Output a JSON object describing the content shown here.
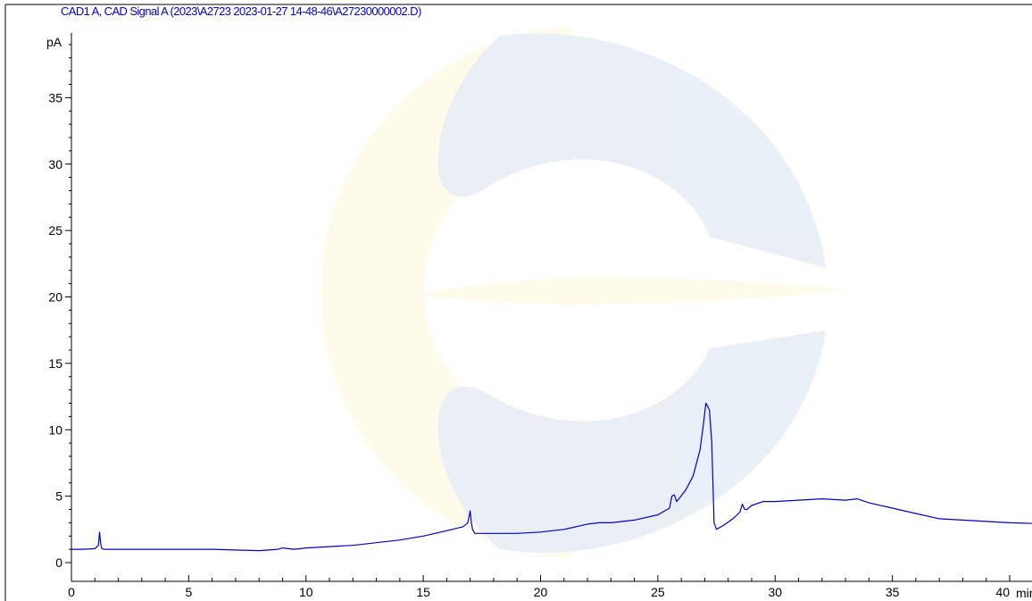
{
  "colors": {
    "trace": "#0000cc",
    "title": "#0000cc",
    "axis": "#000000",
    "watermark_blue": "#e8eef6",
    "watermark_yellow": "#fffbe8"
  },
  "chart_data": {
    "type": "line",
    "title": "CAD1 A, CAD Signal A (2023\\A2723 2023-01-27 14-48-46\\A27230000002.D)",
    "ylabel": "pA",
    "xlabel": "min",
    "xlim": [
      0,
      41
    ],
    "ylim": [
      -1,
      40
    ],
    "xticks": [
      "0",
      "5",
      "10",
      "15",
      "20",
      "25",
      "30",
      "35",
      "40"
    ],
    "xtick_values": [
      0,
      5,
      10,
      15,
      20,
      25,
      30,
      35,
      40
    ],
    "yticks": [
      "0",
      "5",
      "10",
      "15",
      "20",
      "25",
      "30",
      "35"
    ],
    "ytick_values": [
      0,
      5,
      10,
      15,
      20,
      25,
      30,
      35
    ],
    "grid": false,
    "watermark": "company-logo",
    "series": [
      {
        "x": [
          0,
          0.5,
          1.0,
          1.15,
          1.2,
          1.25,
          1.3,
          1.4,
          2,
          3,
          4,
          5,
          6,
          7,
          8,
          8.8,
          9.0,
          9.5,
          10,
          11,
          12,
          13,
          14,
          15,
          16,
          16.7,
          16.9,
          17.0,
          17.05,
          17.1,
          17.2,
          17.4,
          18,
          19,
          20,
          21,
          22,
          22.5,
          23,
          24,
          25,
          25.5,
          25.6,
          25.7,
          25.8,
          25.9,
          26.2,
          26.5,
          26.8,
          26.95,
          27.05,
          27.2,
          27.3,
          27.4,
          27.5,
          27.8,
          28.2,
          28.5,
          28.6,
          28.7,
          28.8,
          29,
          29.5,
          30,
          31,
          32,
          33,
          33.5,
          34,
          35,
          36,
          37,
          38,
          39,
          40,
          41
        ],
        "y": [
          1.0,
          1.0,
          1.05,
          1.3,
          2.3,
          1.4,
          1.05,
          1.0,
          1.0,
          1.0,
          1.0,
          1.0,
          1.0,
          0.95,
          0.9,
          1.0,
          1.1,
          1.0,
          1.1,
          1.2,
          1.3,
          1.5,
          1.7,
          2.0,
          2.4,
          2.7,
          3.0,
          3.9,
          3.0,
          2.5,
          2.2,
          2.2,
          2.2,
          2.2,
          2.3,
          2.5,
          2.9,
          3.0,
          3.0,
          3.2,
          3.6,
          4.1,
          5.0,
          5.1,
          4.6,
          4.8,
          5.5,
          6.5,
          8.5,
          10.5,
          12.0,
          11.5,
          9.0,
          3.0,
          2.5,
          2.8,
          3.3,
          3.8,
          4.4,
          4.0,
          4.0,
          4.3,
          4.6,
          4.6,
          4.7,
          4.8,
          4.7,
          4.8,
          4.5,
          4.1,
          3.7,
          3.3,
          3.2,
          3.1,
          3.0,
          2.95
        ]
      }
    ]
  }
}
